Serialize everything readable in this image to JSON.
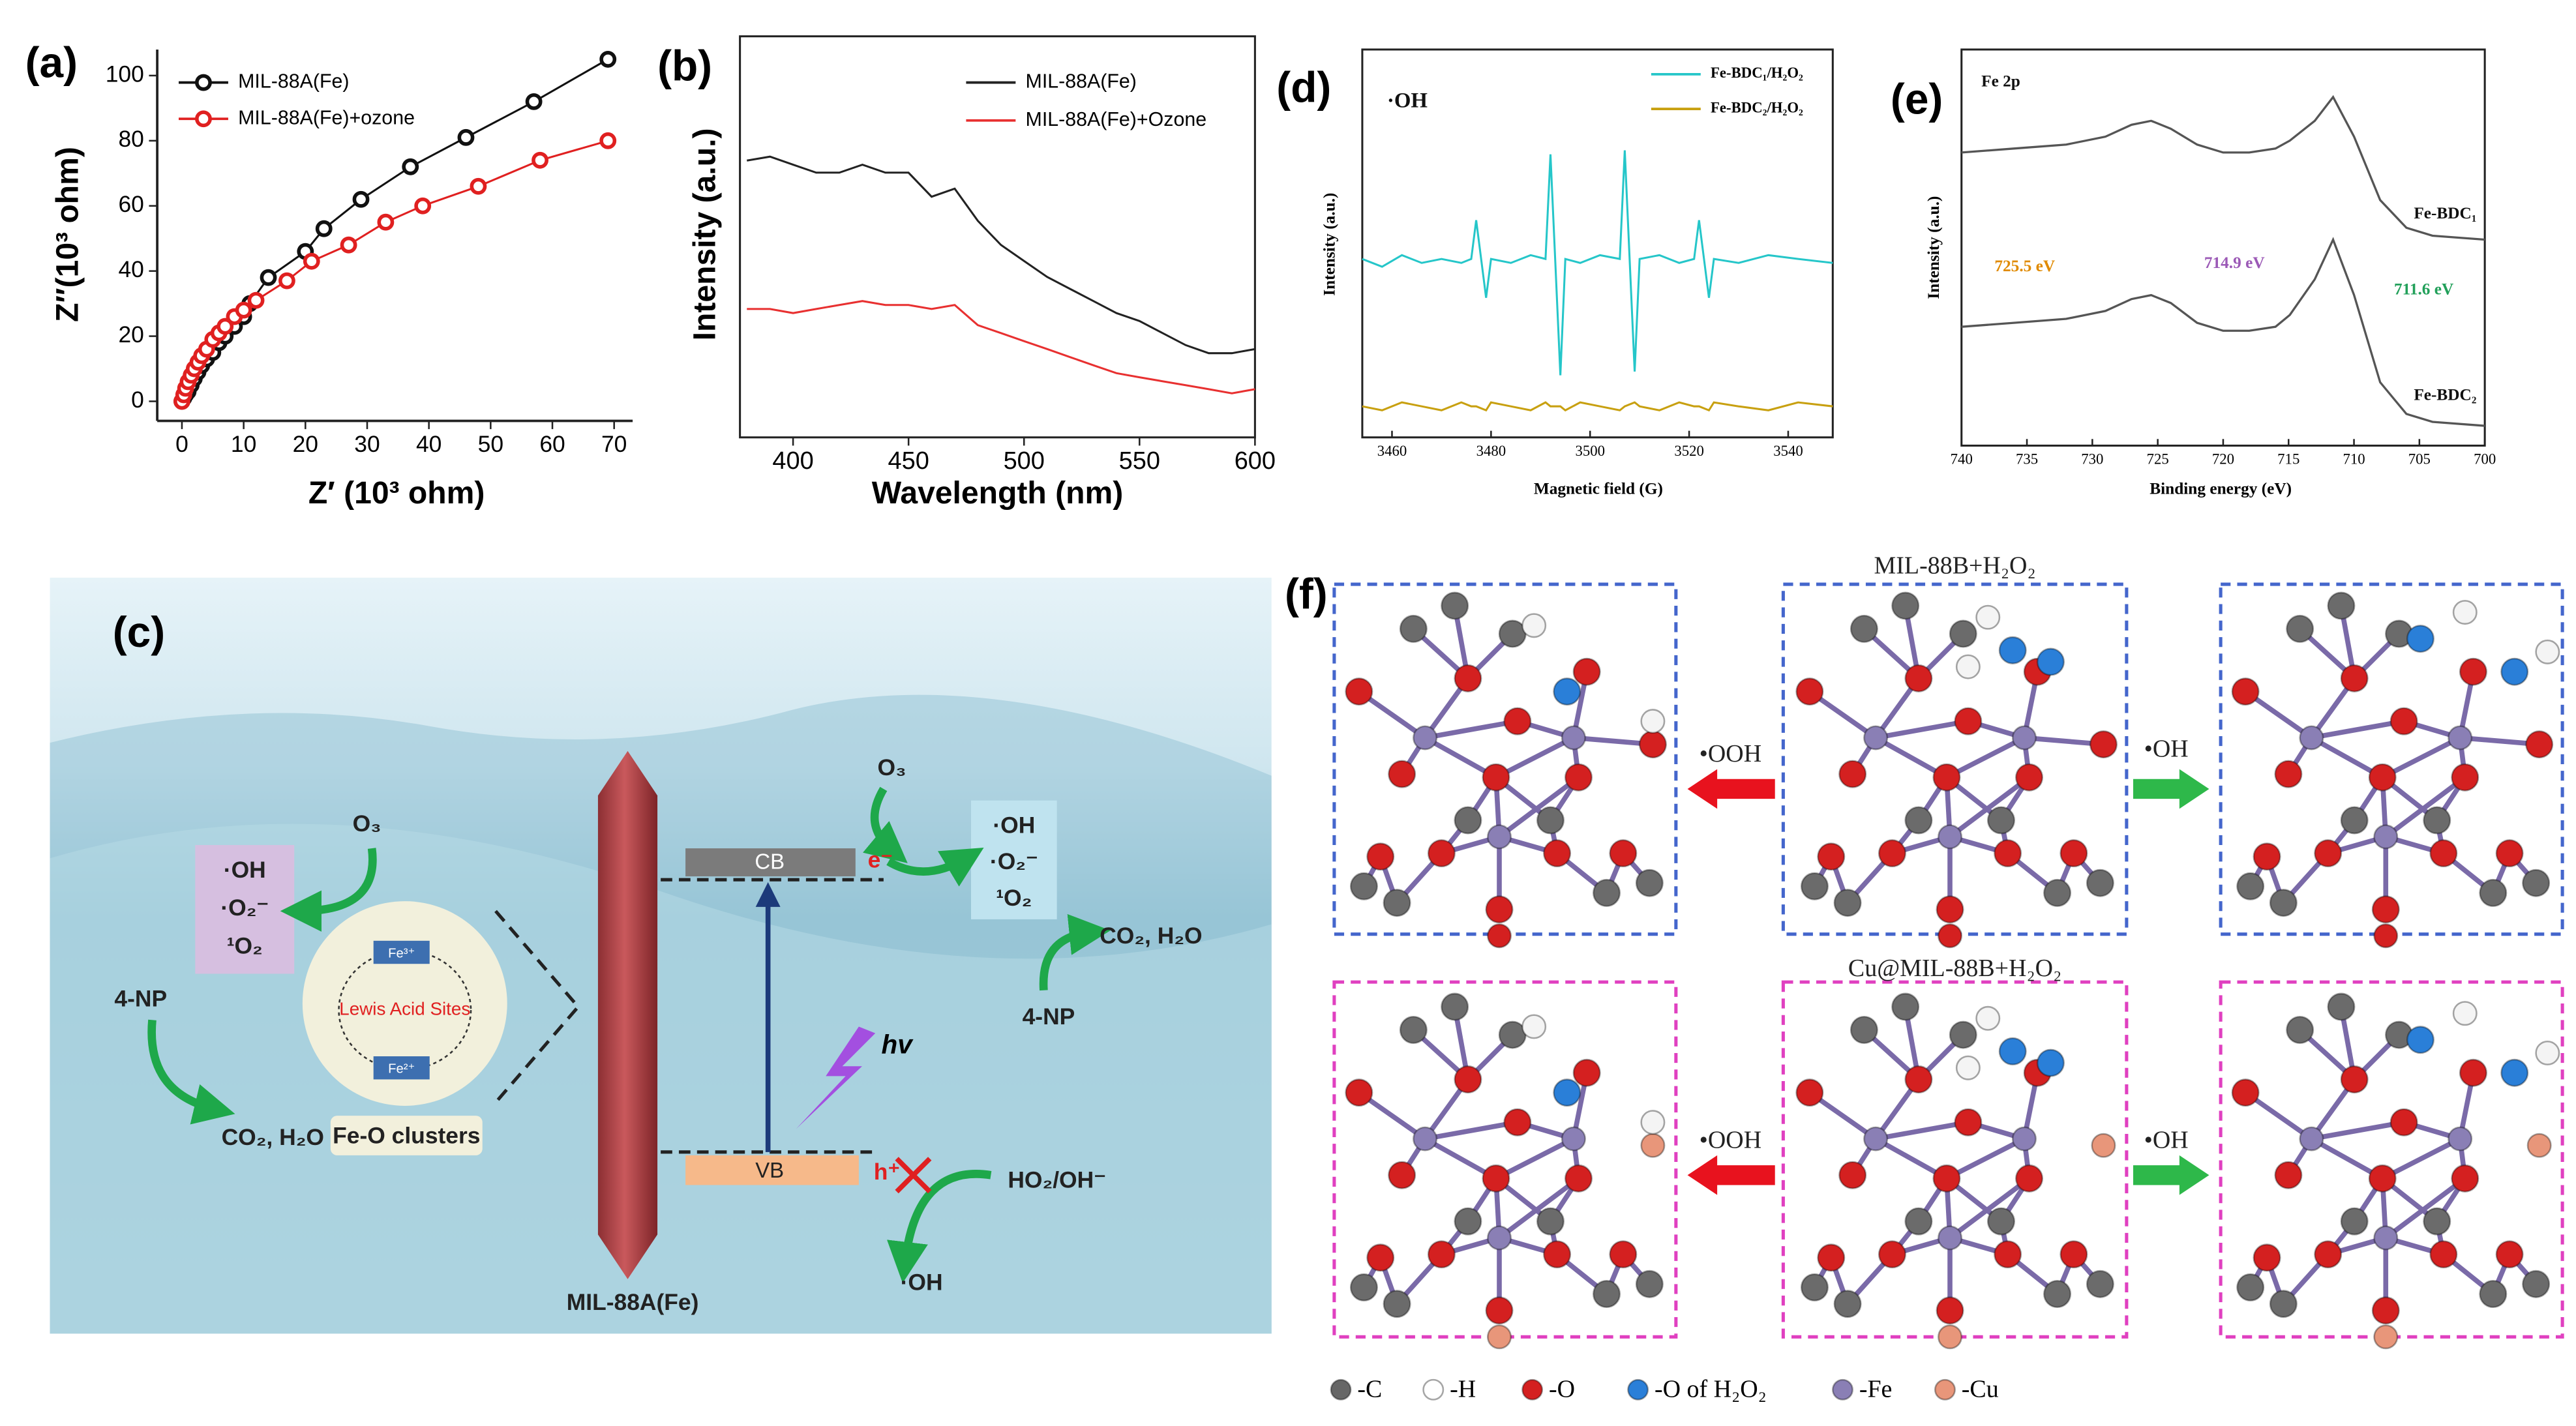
{
  "chart_data": [
    {
      "type": "scatter",
      "label": "(a)",
      "xlabel": "Z′ (10³ ohm)",
      "ylabel": "Z″(10³ ohm)",
      "xlim": [
        -4,
        73
      ],
      "ylim": [
        -6,
        108
      ],
      "xticks": [
        0,
        10,
        20,
        30,
        40,
        50,
        60,
        70
      ],
      "yticks": [
        0,
        20,
        40,
        60,
        80,
        100
      ],
      "legend": "upper left",
      "series": [
        {
          "name": "MIL-88A(Fe)",
          "color": "#111111",
          "x": [
            0,
            0.3,
            0.6,
            1,
            1.5,
            2,
            2.6,
            3.2,
            4,
            5,
            6,
            7,
            8.5,
            10,
            11,
            14,
            20,
            23,
            29,
            37,
            46,
            57,
            69
          ],
          "values": [
            0,
            1,
            2,
            3,
            5,
            7,
            9,
            11,
            13,
            15,
            18,
            20,
            23,
            26,
            30,
            38,
            46,
            53,
            62,
            72,
            81,
            92,
            105
          ]
        },
        {
          "name": "MIL-88A(Fe)+ozone",
          "color": "#e02020",
          "x": [
            0,
            0.3,
            0.6,
            1,
            1.5,
            2,
            2.6,
            3.2,
            4,
            5,
            6,
            7,
            8.5,
            10,
            12,
            17,
            21,
            27,
            33,
            39,
            48,
            58,
            69
          ],
          "values": [
            0,
            2,
            4,
            6,
            8,
            10,
            12,
            14,
            16,
            19,
            21,
            23,
            26,
            28,
            31,
            37,
            43,
            48,
            55,
            60,
            66,
            74,
            80
          ]
        }
      ]
    },
    {
      "type": "line",
      "label": "(b)",
      "xlabel": "Wavelength (nm)",
      "ylabel": "Intensity (a.u.)",
      "xlim": [
        377,
        600
      ],
      "ylim": [
        0,
        100
      ],
      "xticks": [
        400,
        450,
        500,
        550,
        600
      ],
      "legend": "upper right",
      "x": [
        380,
        390,
        400,
        410,
        420,
        430,
        440,
        450,
        460,
        470,
        480,
        490,
        500,
        510,
        520,
        530,
        540,
        550,
        560,
        570,
        580,
        590,
        600
      ],
      "series": [
        {
          "name": "MIL-88A(Fe)",
          "color": "#222222",
          "values": [
            69,
            70,
            68,
            66,
            66,
            68,
            66,
            66,
            60,
            62,
            54,
            48,
            44,
            40,
            37,
            34,
            31,
            29,
            26,
            23,
            21,
            21,
            22
          ]
        },
        {
          "name": "MIL-88A(Fe)+Ozone",
          "color": "#e83030",
          "values": [
            32,
            32,
            31,
            32,
            33,
            34,
            33,
            33,
            32,
            33,
            28,
            26,
            24,
            22,
            20,
            18,
            16,
            15,
            14,
            13,
            12,
            11,
            12
          ]
        }
      ]
    },
    {
      "type": "line",
      "label": "(d)",
      "xlabel": "Magnetic field (G)",
      "ylabel": "Intensity (a.u.)",
      "xlim": [
        3454,
        3549
      ],
      "ylim": [
        0,
        100
      ],
      "xticks": [
        3460,
        3480,
        3500,
        3520,
        3540
      ],
      "legend": "upper right",
      "annotations": [
        {
          "text": "·OH"
        }
      ],
      "x": [
        3454,
        3458,
        3462,
        3466,
        3470,
        3474,
        3476,
        3477,
        3479,
        3480,
        3484,
        3488,
        3491,
        3492,
        3494,
        3495,
        3498,
        3502,
        3506,
        3507,
        3509,
        3510,
        3514,
        3518,
        3521,
        3522,
        3524,
        3525,
        3530,
        3536,
        3542,
        3549
      ],
      "series": [
        {
          "name": "Fe-BDC₁/H₂O₂",
          "color": "#25c6c9",
          "values": [
            46,
            44,
            47,
            45,
            46,
            45,
            46,
            56,
            36,
            46,
            45,
            47,
            46,
            73,
            16,
            46,
            45,
            47,
            46,
            74,
            17,
            46,
            47,
            45,
            46,
            56,
            36,
            46,
            45,
            47,
            46,
            45
          ]
        },
        {
          "name": "Fe-BDC₂/H₂O₂",
          "color": "#c8a010",
          "values": [
            8,
            7,
            9,
            8,
            7,
            9,
            8,
            8,
            7,
            9,
            8,
            7,
            9,
            8,
            8,
            7,
            9,
            8,
            7,
            8,
            9,
            8,
            7,
            9,
            8,
            8,
            7,
            9,
            8,
            7,
            9,
            8
          ]
        }
      ]
    },
    {
      "type": "line",
      "label": "(e)",
      "xlabel": "Binding energy (eV)",
      "ylabel": "Intensity (a.u.)",
      "xlim": [
        740,
        700
      ],
      "ylim": [
        0,
        100
      ],
      "xticks": [
        740,
        735,
        730,
        725,
        720,
        715,
        710,
        705,
        700
      ],
      "annotations": [
        {
          "text": "Fe 2p",
          "color": "#111111"
        },
        {
          "text": "725.5 eV",
          "color": "#e08a00"
        },
        {
          "text": "714.9 eV",
          "color": "#9b59b6"
        },
        {
          "text": "711.6 eV",
          "color": "#22a05a"
        },
        {
          "text": "Fe-BDC₁",
          "color": "#111111"
        },
        {
          "text": "Fe-BDC₂",
          "color": "#111111"
        }
      ],
      "x": [
        740,
        736,
        732,
        729,
        727,
        725.5,
        724,
        722,
        720,
        718,
        716,
        714.9,
        713,
        711.6,
        710,
        708,
        706,
        704,
        700
      ],
      "series": [
        {
          "color": "#555555",
          "values": [
            74,
            75,
            76,
            78,
            81,
            82,
            80,
            76,
            74,
            74,
            75,
            77,
            82,
            88,
            78,
            62,
            55,
            53,
            52
          ]
        },
        {
          "color": "#555555",
          "values": [
            30,
            31,
            32,
            34,
            37,
            38,
            36,
            31,
            29,
            29,
            30,
            33,
            42,
            52,
            38,
            16,
            8,
            6,
            5
          ]
        }
      ]
    }
  ],
  "diagram_c": {
    "label": "(c)",
    "o3_left": "O₃",
    "species_left": [
      "·OH",
      "·O₂⁻",
      "¹O₂"
    ],
    "np_left": "4-NP",
    "products_left": "CO₂, H₂O",
    "lewis": "Lewis Acid Sites",
    "cluster": "Fe-O clusters",
    "fe_nodes": [
      "Fe³⁺",
      "Fe²⁺"
    ],
    "cb": "CB",
    "vb": "VB",
    "electron": "e⁻",
    "hole": "h⁺",
    "hv": "hv",
    "ho2": "HO₂/OH⁻",
    "oh_bottom": "·OH",
    "crystal": "MIL-88A(Fe)",
    "o3_right": "O₃",
    "species_right": [
      "·OH",
      "·O₂⁻",
      "¹O₂"
    ],
    "products_right": "CO₂, H₂O",
    "np_right": "4-NP"
  },
  "structures_f": {
    "label": "(f)",
    "top_title": "MIL-88B+H₂O₂",
    "bottom_title": "Cu@MIL-88B+H₂O₂",
    "arrows": [
      "•OOH",
      "•OH",
      "•OOH",
      "•OH"
    ],
    "legend": [
      {
        "text": "-C",
        "color": "#666666"
      },
      {
        "text": "-H",
        "color": "#ffffff"
      },
      {
        "text": "-O",
        "color": "#d42020"
      },
      {
        "text": "-O of H₂O₂",
        "color": "#2a7fd8"
      },
      {
        "text": "-Fe",
        "color": "#8a7fb5"
      },
      {
        "text": "-Cu",
        "color": "#e8967a"
      }
    ]
  }
}
